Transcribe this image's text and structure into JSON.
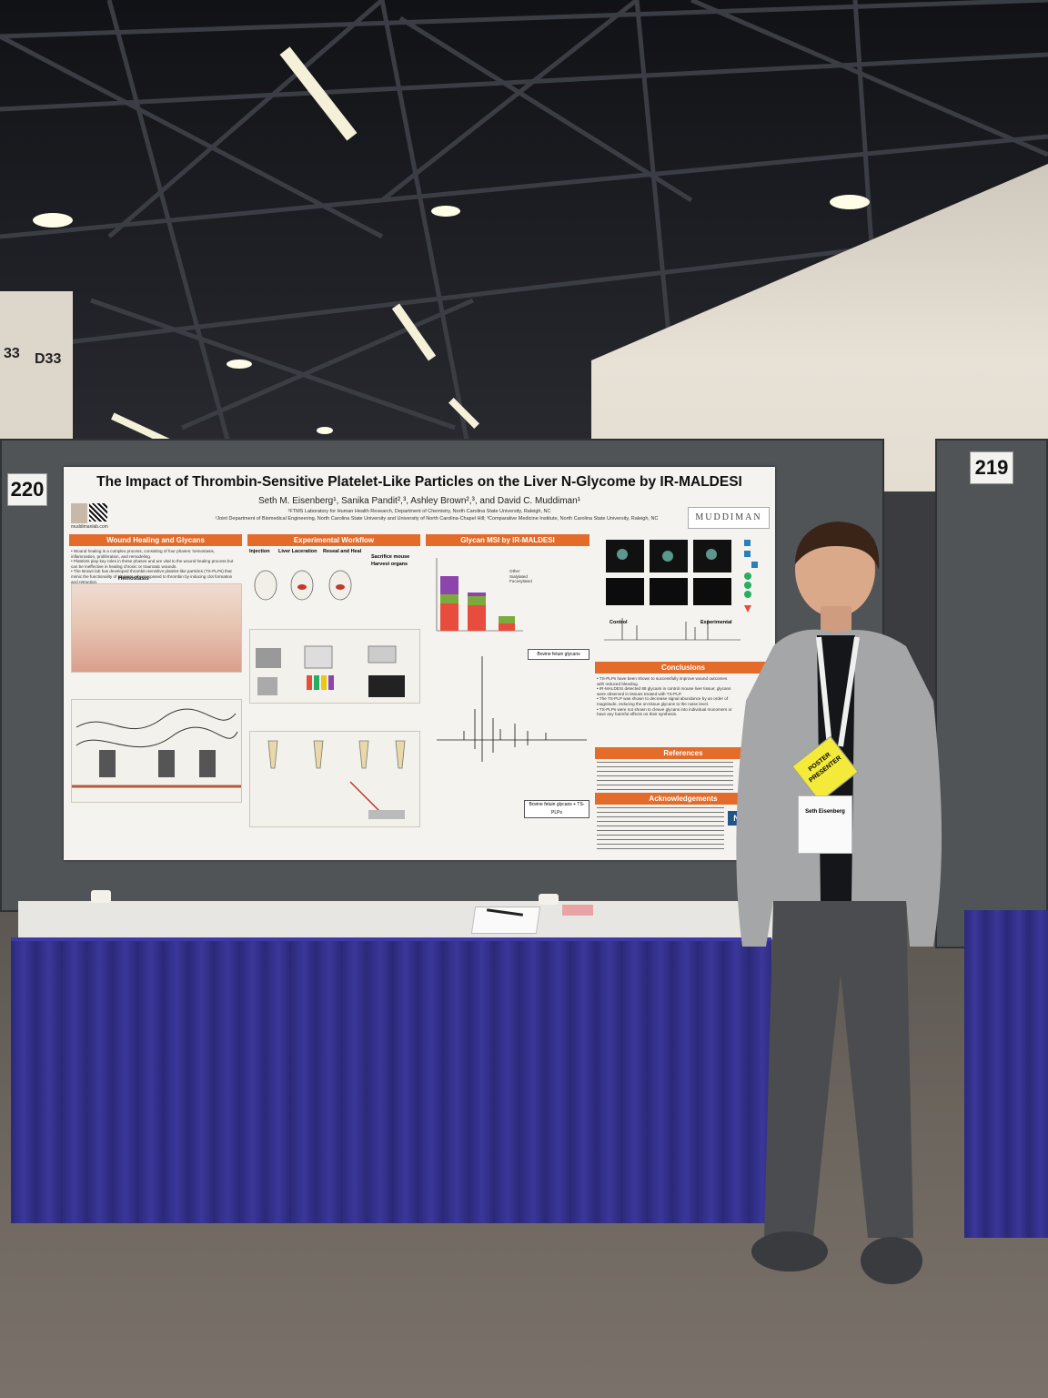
{
  "booth_numbers": {
    "left": "220",
    "right": "219"
  },
  "wall_signs": {
    "a": "D33",
    "b": "33"
  },
  "poster": {
    "title": "The Impact of Thrombin-Sensitive Platelet-Like Particles on the Liver N-Glycome by IR-MALDESI",
    "authors": "Seth M. Eisenberg¹, Sanika Pandit²,³, Ashley Brown²,³, and David C. Muddiman¹",
    "affiliation_1": "¹FTMS Laboratory for Human Health Research, Department of Chemistry, North Carolina State University, Raleigh, NC",
    "affiliation_2": "²Joint Department of Biomedical Engineering, North Carolina State University and University of North Carolina-Chapel Hill; ³Comparative Medicine Institute, North Carolina State University, Raleigh, NC",
    "website": "muddimanlab.com",
    "logo_text": "MUDDIMAN",
    "sections": {
      "wound": "Wound Healing and Glycans",
      "workflow": "Experimental Workflow",
      "glycan_msi": "Glycan MSI by IR-MALDESI",
      "conclusions": "Conclusions",
      "references": "References",
      "acknowledgements": "Acknowledgements"
    },
    "workflow_labels": [
      "Injection",
      "Liver Laceration",
      "Reseal and Heal",
      "Sacrifice mouse",
      "Harvest organs"
    ],
    "wound_bullets": [
      "• Wound healing is a complex process, consisting of four phases: hemostasis, inflammation, proliferation, and remodeling.",
      "• Platelets play key roles in these phases and are vital to the wound healing process but can be ineffective in healing chronic or traumatic wounds.",
      "• The Brown lab has developed thrombin-sensitive platelet-like particles (TS-PLPs) that mimic the functionality of platelets when exposed to thrombin by inducing clot formation and retraction.",
      "• TS-PLPs were shown to significantly reduce clot % porosity, blood loss, and wound area of a liver wound after 1 week of healing."
    ],
    "figure_labels": {
      "hemostasis": "Hemostasis",
      "bovine_fetuin": "Bovine fetuin glycans",
      "bovine_tsplp": "Bovine fetuin glycans + TS-PLPs",
      "control": "Control",
      "experimental": "Experimental"
    },
    "legend": [
      "Other",
      "Sialylated",
      "Fucosylated"
    ],
    "nih": "NIH",
    "conclusion_bullets": [
      "• TS-PLPs have been shown to successfully improve wound outcomes with reduced bleeding.",
      "• IR-MALDESI detected 88 glycans in control mouse liver tissue; glycans were observed in tissues treated with TS-PLP.",
      "• The TS-PLP was shown to decrease signal abundance by an order of magnitude, reducing the on-tissue glycans to the noise level.",
      "• TS-PLPs were not shown to cleave glycans into individual monomers or have any harmful effects on their synthesis."
    ]
  },
  "badge": {
    "ribbon": "POSTER PRESENTER",
    "name": "Seth Eisenberg"
  }
}
